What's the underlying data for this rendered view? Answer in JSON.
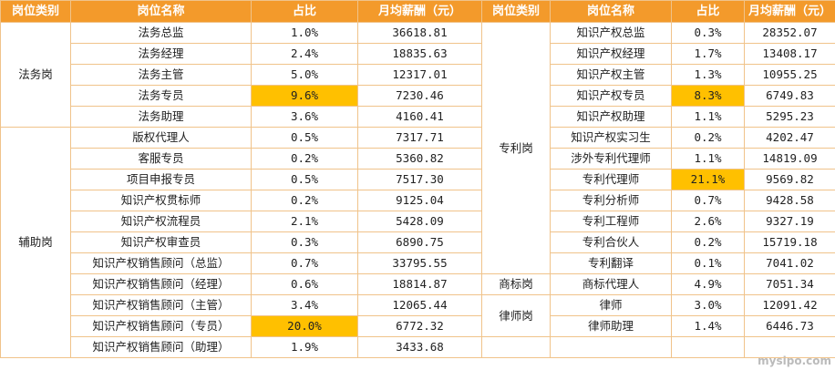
{
  "headers": {
    "category": "岗位类别",
    "position": "岗位名称",
    "share": "占比",
    "salary": "月均薪酬（元）"
  },
  "left_groups": [
    {
      "category": "法务岗",
      "rows": [
        {
          "position": "法务总监",
          "share": "1.0%",
          "salary": "36618.81"
        },
        {
          "position": "法务经理",
          "share": "2.4%",
          "salary": "18835.63"
        },
        {
          "position": "法务主管",
          "share": "5.0%",
          "salary": "12317.01"
        },
        {
          "position": "法务专员",
          "share": "9.6%",
          "salary": "7230.46",
          "highlight": true
        },
        {
          "position": "法务助理",
          "share": "3.6%",
          "salary": "4160.41"
        }
      ]
    },
    {
      "category": "辅助岗",
      "rows": [
        {
          "position": "版权代理人",
          "share": "0.5%",
          "salary": "7317.71"
        },
        {
          "position": "客服专员",
          "share": "0.2%",
          "salary": "5360.82"
        },
        {
          "position": "项目申报专员",
          "share": "0.5%",
          "salary": "7517.30"
        },
        {
          "position": "知识产权贯标师",
          "share": "0.2%",
          "salary": "9125.04"
        },
        {
          "position": "知识产权流程员",
          "share": "2.1%",
          "salary": "5428.09"
        },
        {
          "position": "知识产权审查员",
          "share": "0.3%",
          "salary": "6890.75"
        },
        {
          "position": "知识产权销售顾问（总监）",
          "share": "0.7%",
          "salary": "33795.55"
        },
        {
          "position": "知识产权销售顾问（经理）",
          "share": "0.6%",
          "salary": "18814.87"
        },
        {
          "position": "知识产权销售顾问（主管）",
          "share": "3.4%",
          "salary": "12065.44"
        },
        {
          "position": "知识产权销售顾问（专员）",
          "share": "20.0%",
          "salary": "6772.32",
          "highlight": true
        },
        {
          "position": "知识产权销售顾问（助理）",
          "share": "1.9%",
          "salary": "3433.68"
        }
      ]
    }
  ],
  "right_groups": [
    {
      "category": "专利岗",
      "rows": [
        {
          "position": "知识产权总监",
          "share": "0.3%",
          "salary": "28352.07"
        },
        {
          "position": "知识产权经理",
          "share": "1.7%",
          "salary": "13408.17"
        },
        {
          "position": "知识产权主管",
          "share": "1.3%",
          "salary": "10955.25"
        },
        {
          "position": "知识产权专员",
          "share": "8.3%",
          "salary": "6749.83",
          "highlight": true
        },
        {
          "position": "知识产权助理",
          "share": "1.1%",
          "salary": "5295.23"
        },
        {
          "position": "知识产权实习生",
          "share": "0.2%",
          "salary": "4202.47"
        },
        {
          "position": "涉外专利代理师",
          "share": "1.1%",
          "salary": "14819.09"
        },
        {
          "position": "专利代理师",
          "share": "21.1%",
          "salary": "9569.82",
          "highlight": true
        },
        {
          "position": "专利分析师",
          "share": "0.7%",
          "salary": "9428.58"
        },
        {
          "position": "专利工程师",
          "share": "2.6%",
          "salary": "9327.19"
        },
        {
          "position": "专利合伙人",
          "share": "0.2%",
          "salary": "15719.18"
        },
        {
          "position": "专利翻译",
          "share": "0.1%",
          "salary": "7041.02"
        }
      ]
    },
    {
      "category": "商标岗",
      "rows": [
        {
          "position": "商标代理人",
          "share": "4.9%",
          "salary": "7051.34"
        }
      ]
    },
    {
      "category": "律师岗",
      "rows": [
        {
          "position": "律师",
          "share": "3.0%",
          "salary": "12091.42"
        },
        {
          "position": "律师助理",
          "share": "1.4%",
          "salary": "6446.73"
        }
      ]
    }
  ],
  "watermark": "mysipo.com",
  "colors": {
    "header_bg": "#f39a2b",
    "highlight": "#ffc000",
    "border": "#f0c38a"
  }
}
